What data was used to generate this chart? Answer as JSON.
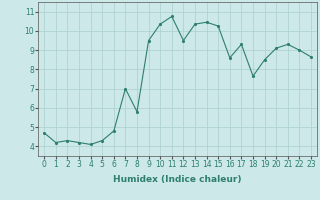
{
  "x": [
    0,
    1,
    2,
    3,
    4,
    5,
    6,
    7,
    8,
    9,
    10,
    11,
    12,
    13,
    14,
    15,
    16,
    17,
    18,
    19,
    20,
    21,
    22,
    23
  ],
  "y": [
    4.7,
    4.2,
    4.3,
    4.2,
    4.1,
    4.3,
    4.8,
    7.0,
    5.8,
    9.5,
    10.35,
    10.75,
    9.5,
    10.35,
    10.45,
    10.25,
    8.6,
    9.3,
    7.65,
    8.5,
    9.1,
    9.3,
    9.0,
    8.65
  ],
  "line_color": "#2e7f6e",
  "marker_color": "#2e7f6e",
  "bg_color": "#cce8e8",
  "grid_color": "#aacfcf",
  "xlabel": "Humidex (Indice chaleur)",
  "xlim": [
    -0.5,
    23.5
  ],
  "ylim": [
    3.5,
    11.5
  ],
  "yticks": [
    4,
    5,
    6,
    7,
    8,
    9,
    10,
    11
  ],
  "xticks": [
    0,
    1,
    2,
    3,
    4,
    5,
    6,
    7,
    8,
    9,
    10,
    11,
    12,
    13,
    14,
    15,
    16,
    17,
    18,
    19,
    20,
    21,
    22,
    23
  ],
  "tick_fontsize": 5.5,
  "label_fontsize": 6.5,
  "tick_color": "#2e7f6e",
  "spine_color": "#555555"
}
